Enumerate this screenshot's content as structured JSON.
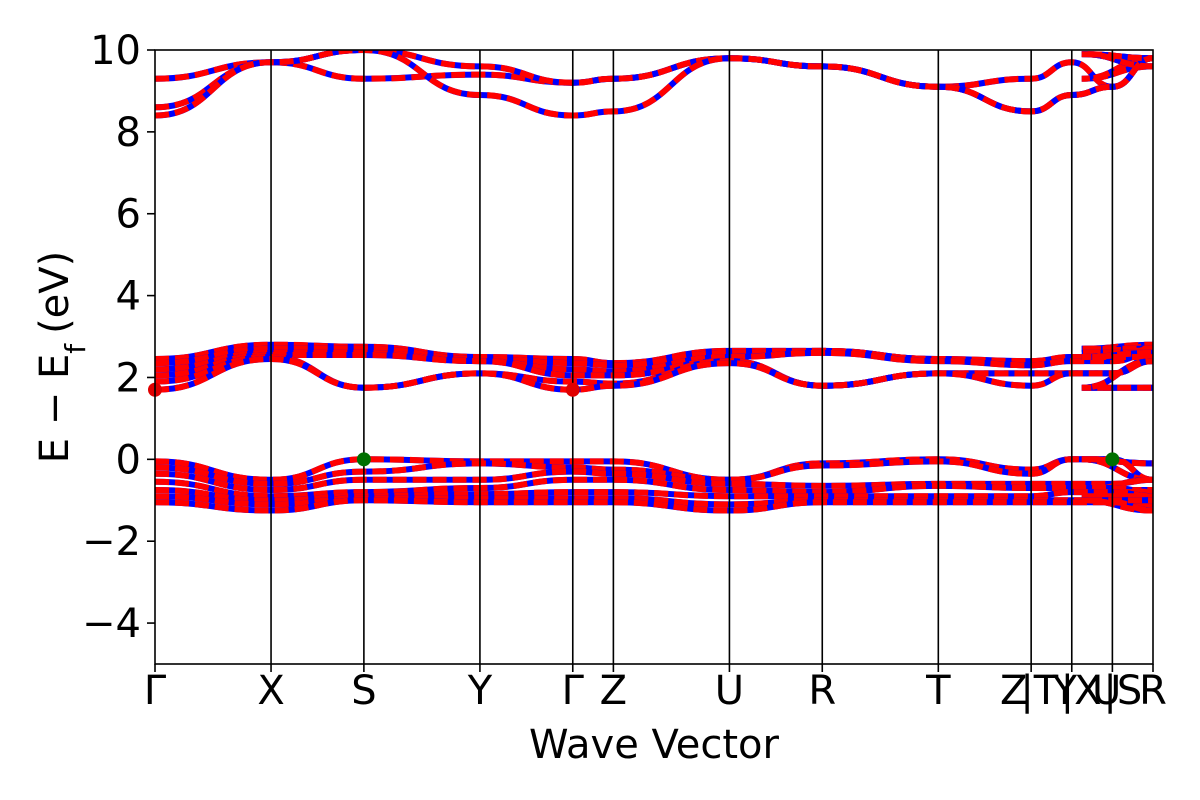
{
  "chart_data": {
    "type": "line",
    "title": "",
    "xlabel": "Wave Vector",
    "ylabel": "E − E",
    "ylabel_subscript": "f",
    "ylabel_unit": "(eV)",
    "ylim": [
      -5,
      10
    ],
    "y_ticks": [
      -4,
      -2,
      0,
      2,
      4,
      6,
      8,
      10
    ],
    "y_tick_labels": [
      "−4",
      "−2",
      "0",
      "2",
      "4",
      "6",
      "8",
      "10"
    ],
    "x_path_labels": [
      "Γ",
      "X",
      "S",
      "Y",
      "Γ",
      "Z",
      "U",
      "R",
      "T",
      "Z",
      "|T",
      "Y",
      "|X",
      "U",
      "|S",
      "R"
    ],
    "x_positions": [
      0,
      1.0,
      1.8,
      2.8,
      3.6,
      3.95,
      4.95,
      5.75,
      6.75,
      7.55,
      7.55,
      7.9,
      7.9,
      8.25,
      8.25,
      8.6
    ],
    "high_symmetry_lines": [
      0,
      1.0,
      1.8,
      2.8,
      3.6,
      3.95,
      4.95,
      5.75,
      6.75,
      7.55,
      7.9,
      8.25,
      8.6
    ],
    "grid": false,
    "legend": "none",
    "colors": {
      "spin_up": "#ff0000",
      "spin_down": "#0000ff",
      "cbm_marker": "#e00000",
      "vbm_marker": "#007000",
      "vline": "#000000"
    },
    "markers": [
      {
        "role": "VBM",
        "x": 1.8,
        "y": 0.0
      },
      {
        "role": "VBM",
        "x": 8.25,
        "y": 0.0
      },
      {
        "role": "CBM",
        "x": 0,
        "y": 1.7
      },
      {
        "role": "CBM",
        "x": 3.6,
        "y": 1.7
      }
    ],
    "series": [
      {
        "y": [
          9.3,
          9.7,
          9.3,
          9.4,
          9.2,
          9.3,
          9.8,
          9.6,
          9.1,
          9.3,
          9.7,
          9.1,
          9.8,
          9.3,
          9.6
        ]
      },
      {
        "y": [
          8.6,
          9.7,
          10.0,
          9.6,
          9.2,
          9.3,
          9.8,
          9.6,
          9.1,
          8.5,
          8.9,
          9.1,
          9.8,
          9.9,
          9.6
        ]
      },
      {
        "y": [
          8.4,
          9.7,
          10.0,
          8.9,
          8.4,
          8.5,
          9.8,
          9.6,
          9.1,
          8.5,
          8.9,
          9.1,
          9.8,
          9.9,
          9.6
        ]
      },
      {
        "y": [
          2.45,
          2.8,
          2.75,
          2.5,
          2.45,
          2.35,
          2.65,
          2.65,
          2.45,
          2.3,
          2.5,
          2.5,
          2.8,
          2.7,
          2.65
        ]
      },
      {
        "y": [
          2.35,
          2.7,
          2.7,
          2.45,
          2.35,
          2.3,
          2.6,
          2.65,
          2.45,
          2.4,
          2.5,
          2.45,
          2.7,
          2.7,
          2.65
        ]
      },
      {
        "y": [
          2.2,
          2.6,
          2.6,
          2.4,
          2.2,
          2.15,
          2.5,
          2.6,
          2.4,
          2.3,
          2.4,
          2.4,
          2.6,
          2.6,
          2.6
        ]
      },
      {
        "y": [
          2.05,
          2.55,
          2.55,
          2.4,
          2.05,
          2.05,
          2.4,
          1.8,
          2.1,
          2.1,
          2.1,
          2.1,
          2.5,
          2.5,
          2.6
        ]
      },
      {
        "y": [
          1.9,
          2.5,
          1.75,
          2.1,
          1.9,
          1.85,
          2.4,
          1.8,
          2.1,
          2.1,
          2.1,
          2.1,
          2.4,
          1.75,
          1.75
        ]
      },
      {
        "y": [
          1.7,
          2.45,
          1.75,
          2.1,
          1.7,
          1.8,
          2.35,
          1.8,
          2.1,
          1.8,
          2.1,
          2.1,
          2.4,
          1.75,
          1.75
        ]
      },
      {
        "y": [
          -0.05,
          -0.5,
          0.0,
          -0.05,
          -0.05,
          -0.05,
          -0.5,
          -0.1,
          0.0,
          -0.25,
          0.0,
          0.0,
          -0.5,
          0.0,
          -0.1
        ]
      },
      {
        "y": [
          -0.2,
          -0.6,
          -0.3,
          -0.1,
          -0.2,
          -0.25,
          -0.5,
          -0.15,
          -0.05,
          -0.35,
          0.0,
          0.0,
          -0.5,
          0.0,
          -0.1
        ]
      },
      {
        "y": [
          -0.35,
          -0.75,
          -0.5,
          -0.5,
          -0.3,
          -0.35,
          -0.6,
          -0.65,
          -0.6,
          -0.6,
          -0.6,
          -0.6,
          -0.5,
          -0.75,
          -0.75
        ]
      },
      {
        "y": [
          -0.55,
          -0.9,
          -0.8,
          -0.7,
          -0.5,
          -0.5,
          -0.75,
          -0.8,
          -0.65,
          -0.7,
          -0.7,
          -0.7,
          -0.8,
          -0.8,
          -0.8
        ]
      },
      {
        "y": [
          -0.75,
          -1.0,
          -0.9,
          -0.85,
          -0.8,
          -0.8,
          -0.9,
          -0.9,
          -0.9,
          -0.9,
          -0.8,
          -0.8,
          -0.9,
          -0.9,
          -0.9
        ]
      },
      {
        "y": [
          -0.9,
          -1.1,
          -0.95,
          -0.95,
          -0.95,
          -0.95,
          -1.1,
          -1.0,
          -1.0,
          -1.0,
          -1.0,
          -1.0,
          -1.1,
          -1.0,
          -1.0
        ]
      },
      {
        "y": [
          -1.05,
          -1.25,
          -1.0,
          -1.05,
          -1.05,
          -1.05,
          -1.25,
          -1.05,
          -1.05,
          -1.05,
          -1.05,
          -1.05,
          -1.25,
          -1.0,
          -1.0
        ]
      }
    ]
  }
}
